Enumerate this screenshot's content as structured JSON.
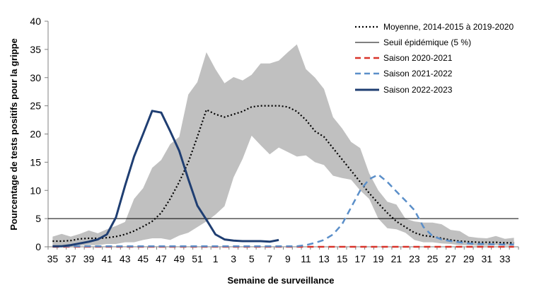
{
  "chart_data": {
    "type": "line",
    "xlabel": "Semaine de surveillance",
    "ylabel": "Pourcentage de tests positifs pour la grippe",
    "ylim": [
      0,
      40
    ],
    "yticks": [
      0,
      5,
      10,
      15,
      20,
      25,
      30,
      35,
      40
    ],
    "weeks": [
      35,
      36,
      37,
      38,
      39,
      40,
      41,
      42,
      43,
      44,
      45,
      46,
      47,
      48,
      49,
      50,
      51,
      52,
      1,
      2,
      3,
      4,
      5,
      6,
      7,
      8,
      9,
      10,
      11,
      12,
      13,
      14,
      15,
      16,
      17,
      18,
      19,
      20,
      21,
      22,
      23,
      24,
      25,
      26,
      27,
      28,
      29,
      30,
      31,
      32,
      33,
      34
    ],
    "xtick_labels": [
      "35",
      "37",
      "39",
      "41",
      "43",
      "45",
      "47",
      "49",
      "51",
      "1",
      "3",
      "5",
      "7",
      "9",
      "11",
      "13",
      "15",
      "17",
      "19",
      "21",
      "23",
      "25",
      "27",
      "29",
      "31",
      "33"
    ],
    "legend_position": "top-right",
    "range_band": {
      "name": "",
      "color": "#c0c0c0",
      "max": [
        1.8,
        2.3,
        1.8,
        2.3,
        2.9,
        2.4,
        3.1,
        3.7,
        4.4,
        8.5,
        10.4,
        14.0,
        15.4,
        18.2,
        19.5,
        27.0,
        29.2,
        34.5,
        31.5,
        29.0,
        30.1,
        29.5,
        30.5,
        32.5,
        32.5,
        33.0,
        34.5,
        35.9,
        31.5,
        30.0,
        28.0,
        23.0,
        21.0,
        18.6,
        17.5,
        13.0,
        10.0,
        8.0,
        7.5,
        5.0,
        4.5,
        4.3,
        4.3,
        4.0,
        3.0,
        2.8,
        1.8,
        1.6,
        1.5,
        1.9,
        1.4,
        1.6
      ],
      "min": [
        0.2,
        0.2,
        0.1,
        0.2,
        0.3,
        0.3,
        0.5,
        0.5,
        0.8,
        0.8,
        1.2,
        1.5,
        1.5,
        1.2,
        2.0,
        2.5,
        3.5,
        4.5,
        5.7,
        7.2,
        12.3,
        15.6,
        19.7,
        18.0,
        16.4,
        17.6,
        16.8,
        16.0,
        16.2,
        15.0,
        14.5,
        12.6,
        12.2,
        11.9,
        10.0,
        8.5,
        5.0,
        3.3,
        3.1,
        2.5,
        1.2,
        0.8,
        0.8,
        0.6,
        0.5,
        0.3,
        0.3,
        0.2,
        0.2,
        0.3,
        0.2,
        0.2
      ]
    },
    "threshold": {
      "name": "Seuil épidémique (5 %)",
      "value": 5,
      "color": "#000000"
    },
    "series": [
      {
        "name": "Moyenne, 2014-2015 à 2019-2020",
        "style": "dotted",
        "color": "#000000",
        "values": [
          1.0,
          1.0,
          1.1,
          1.4,
          1.5,
          1.5,
          1.6,
          1.8,
          2.2,
          2.8,
          3.6,
          4.5,
          6.0,
          8.5,
          11.5,
          15.0,
          19.5,
          24.3,
          23.5,
          23.0,
          23.5,
          24.0,
          24.8,
          25.0,
          25.0,
          25.0,
          24.8,
          24.0,
          22.5,
          20.5,
          19.5,
          17.5,
          15.5,
          13.5,
          11.5,
          9.5,
          7.7,
          6.0,
          4.5,
          3.5,
          2.5,
          2.0,
          1.8,
          1.5,
          1.2,
          1.0,
          0.9,
          0.8,
          0.8,
          0.8,
          0.7,
          0.7
        ]
      },
      {
        "name": "Saison 2020-2021",
        "style": "dashed",
        "color": "#d9342b",
        "values": [
          0,
          0,
          0,
          0,
          0,
          0,
          0,
          0,
          0,
          0,
          0,
          0,
          0,
          0,
          0,
          0,
          0,
          0,
          0,
          0,
          0,
          0,
          0,
          0,
          0,
          0,
          0,
          0,
          0,
          0,
          0,
          0,
          0,
          0,
          0,
          0,
          0,
          0,
          0,
          0,
          0,
          0,
          0,
          0,
          0,
          0,
          0,
          0,
          0,
          0,
          0,
          0
        ]
      },
      {
        "name": "Saison 2021-2022",
        "style": "dashed",
        "color": "#5b8fc9",
        "values": [
          0.1,
          0.1,
          0.1,
          0.1,
          0.1,
          0.1,
          0.1,
          0.1,
          0.1,
          0.1,
          0.1,
          0.1,
          0.1,
          0.1,
          0.1,
          0.1,
          0.1,
          0.1,
          0.1,
          0.1,
          0.1,
          0.1,
          0.1,
          0.1,
          0.1,
          0.1,
          0.1,
          0.1,
          0.3,
          0.7,
          1.2,
          2.2,
          4.0,
          7.0,
          10.0,
          12.0,
          12.8,
          11.5,
          9.8,
          8.2,
          6.5,
          3.5,
          1.9,
          1.3,
          1.0,
          0.8,
          0.6,
          0.5,
          0.5,
          0.4,
          0.4,
          0.4
        ]
      },
      {
        "name": "Saison 2022-2023",
        "style": "solid",
        "color": "#1f3e72",
        "values": [
          0.1,
          0.1,
          0.3,
          0.6,
          0.9,
          1.3,
          2.2,
          5.2,
          10.8,
          16.0,
          20.0,
          24.1,
          23.8,
          20.5,
          17.0,
          12.0,
          7.3,
          4.8,
          2.2,
          1.3,
          1.1,
          1.0,
          1.0,
          1.0,
          0.9,
          1.2
        ]
      }
    ]
  }
}
